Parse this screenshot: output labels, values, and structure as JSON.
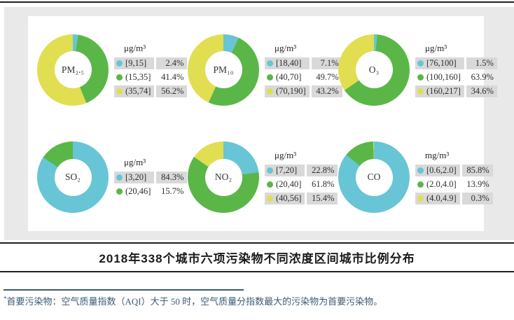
{
  "title": "2018年338个城市六项污染物不同浓度区间城市比例分布",
  "footnote": {
    "marker": "*",
    "text": "首要污染物：空气质量指数（AQI）大于 50 时，空气质量分指数最大的污染物为首要污染物。"
  },
  "palette": {
    "low": "#68c5d5",
    "mid": "#5ab747",
    "high": "#e1de51"
  },
  "chart_data": [
    {
      "type": "pie",
      "name": "PM2.5",
      "label": "PM₂.₅",
      "unit": "μg/m³",
      "slices": [
        {
          "range": "[9,15]",
          "value": 2.4,
          "pct": "2.4%",
          "color": "#68c5d5"
        },
        {
          "range": "(15,35]",
          "value": 41.4,
          "pct": "41.4%",
          "color": "#5ab747"
        },
        {
          "range": "(35,74]",
          "value": 56.2,
          "pct": "56.2%",
          "color": "#e1de51"
        }
      ]
    },
    {
      "type": "pie",
      "name": "PM10",
      "label": "PM₁₀",
      "unit": "μg/m³",
      "slices": [
        {
          "range": "[18,40]",
          "value": 7.1,
          "pct": "7.1%",
          "color": "#68c5d5"
        },
        {
          "range": "(40,70]",
          "value": 49.7,
          "pct": "49.7%",
          "color": "#5ab747"
        },
        {
          "range": "(70,190]",
          "value": 43.2,
          "pct": "43.2%",
          "color": "#e1de51"
        }
      ]
    },
    {
      "type": "pie",
      "name": "O3",
      "label": "O₃",
      "unit": "μg/m³",
      "slices": [
        {
          "range": "[76,100]",
          "value": 1.5,
          "pct": "1.5%",
          "color": "#68c5d5"
        },
        {
          "range": "(100,160]",
          "value": 63.9,
          "pct": "63.9%",
          "color": "#5ab747"
        },
        {
          "range": "(160,217]",
          "value": 34.6,
          "pct": "34.6%",
          "color": "#e1de51"
        }
      ]
    },
    {
      "type": "pie",
      "name": "SO2",
      "label": "SO₂",
      "unit": "μg/m³",
      "slices": [
        {
          "range": "[3,20]",
          "value": 84.3,
          "pct": "84.3%",
          "color": "#68c5d5"
        },
        {
          "range": "(20,46]",
          "value": 15.7,
          "pct": "15.7%",
          "color": "#5ab747"
        }
      ]
    },
    {
      "type": "pie",
      "name": "NO2",
      "label": "NO₂",
      "unit": "μg/m³",
      "slices": [
        {
          "range": "[7,20]",
          "value": 22.8,
          "pct": "22.8%",
          "color": "#68c5d5"
        },
        {
          "range": "(20,40]",
          "value": 61.8,
          "pct": "61.8%",
          "color": "#5ab747"
        },
        {
          "range": "(40,56]",
          "value": 15.4,
          "pct": "15.4%",
          "color": "#e1de51"
        }
      ]
    },
    {
      "type": "pie",
      "name": "CO",
      "label": "CO",
      "unit": "mg/m³",
      "slices": [
        {
          "range": "[0.6,2.0]",
          "value": 85.8,
          "pct": "85.8%",
          "color": "#68c5d5"
        },
        {
          "range": "(2.0,4.0]",
          "value": 13.9,
          "pct": "13.9%",
          "color": "#5ab747"
        },
        {
          "range": "(4.0,4.9]",
          "value": 0.3,
          "pct": "0.3%",
          "color": "#e1de51"
        }
      ]
    }
  ]
}
